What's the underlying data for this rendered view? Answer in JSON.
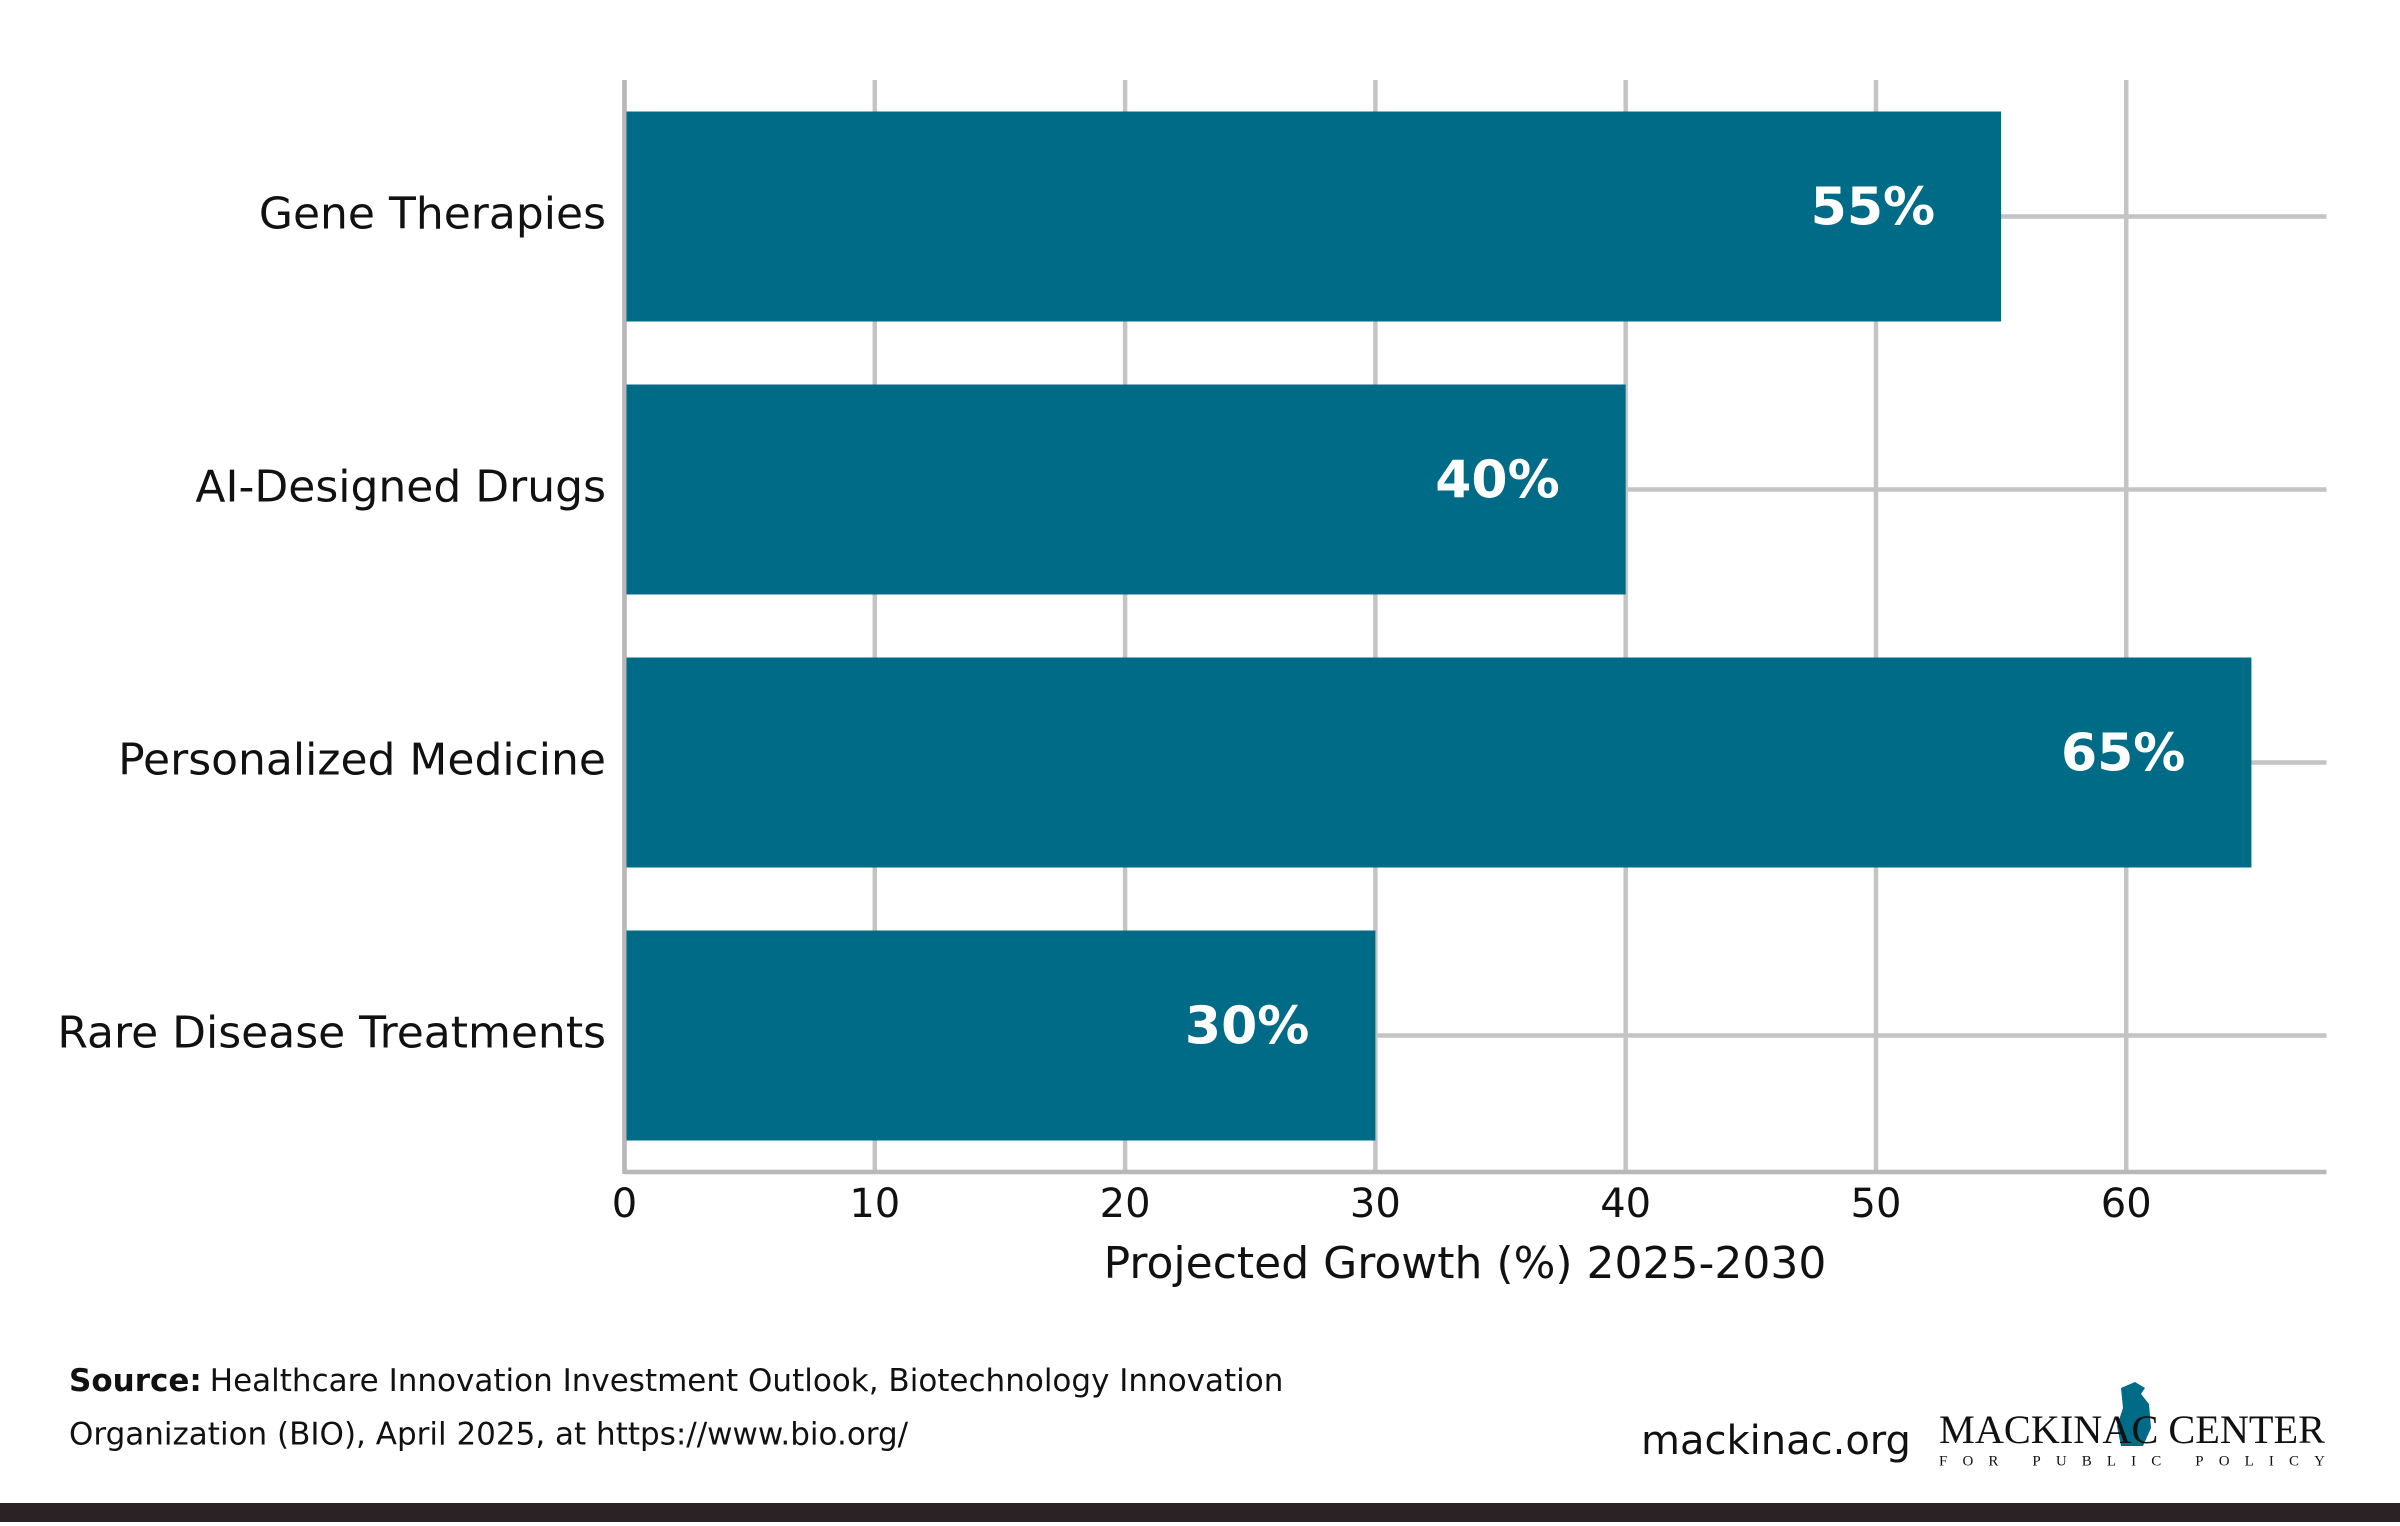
{
  "chart_data": {
    "type": "barh",
    "categories": [
      "Gene Therapies",
      "AI-Designed Drugs",
      "Personalized Medicine",
      "Rare Disease Treatments"
    ],
    "values": [
      55,
      40,
      65,
      30
    ],
    "value_labels": [
      "55%",
      "40%",
      "65%",
      "30%"
    ],
    "color": "#006b87",
    "xlabel": "Projected Growth (%) 2025-2030",
    "xlim": [
      0,
      68
    ],
    "xticks": [
      0,
      10,
      20,
      30,
      40,
      50,
      60
    ],
    "grid": true,
    "source": {
      "label": "Source:",
      "lines": [
        "Healthcare Innovation Investment Outlook, Biotechnology Innovation",
        "Organization (BIO), April 2025, at https://www.bio.org/"
      ]
    },
    "footer": {
      "website": "mackinac.org",
      "logo_name": "MACKINAC CENTER",
      "logo_tagline": "FOR PUBLIC POLICY"
    }
  }
}
